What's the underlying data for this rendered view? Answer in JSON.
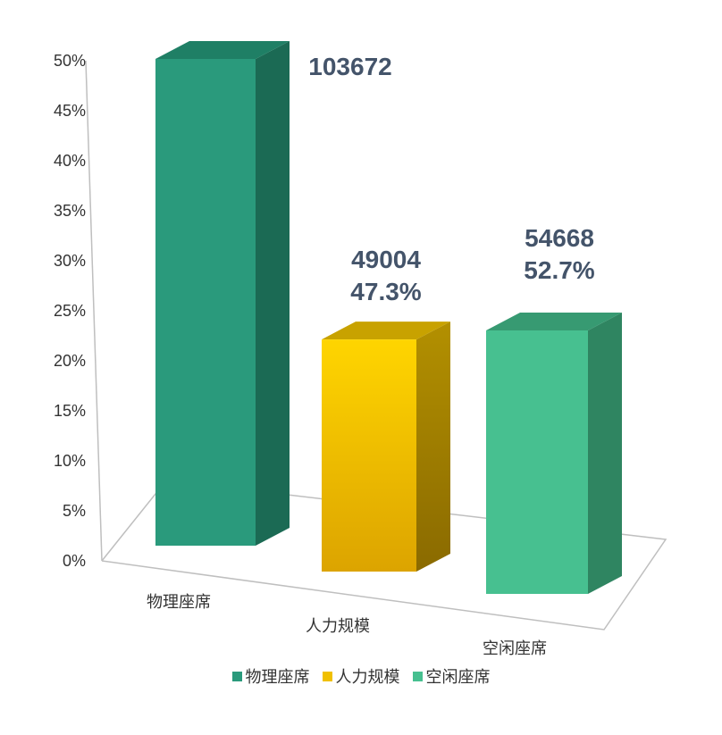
{
  "chart_data": {
    "type": "bar",
    "categories": [
      "物理座席",
      "人力规模",
      "空闲座席"
    ],
    "values": [
      50,
      23,
      25
    ],
    "data_labels": [
      {
        "count": "103672",
        "percent": ""
      },
      {
        "count": "49004",
        "percent": "47.3%"
      },
      {
        "count": "54668",
        "percent": "52.7%"
      }
    ],
    "colors": [
      "#2a9a7c",
      "#f0c000",
      "#47c090"
    ],
    "ylim": [
      0,
      50
    ],
    "yticks": [
      "0%",
      "5%",
      "10%",
      "15%",
      "20%",
      "25%",
      "30%",
      "35%",
      "40%",
      "45%",
      "50%"
    ],
    "legend": [
      "物理座席",
      "人力规模",
      "空闲座席"
    ],
    "legend_position": "bottom",
    "grid": false,
    "style": "3d-column"
  }
}
